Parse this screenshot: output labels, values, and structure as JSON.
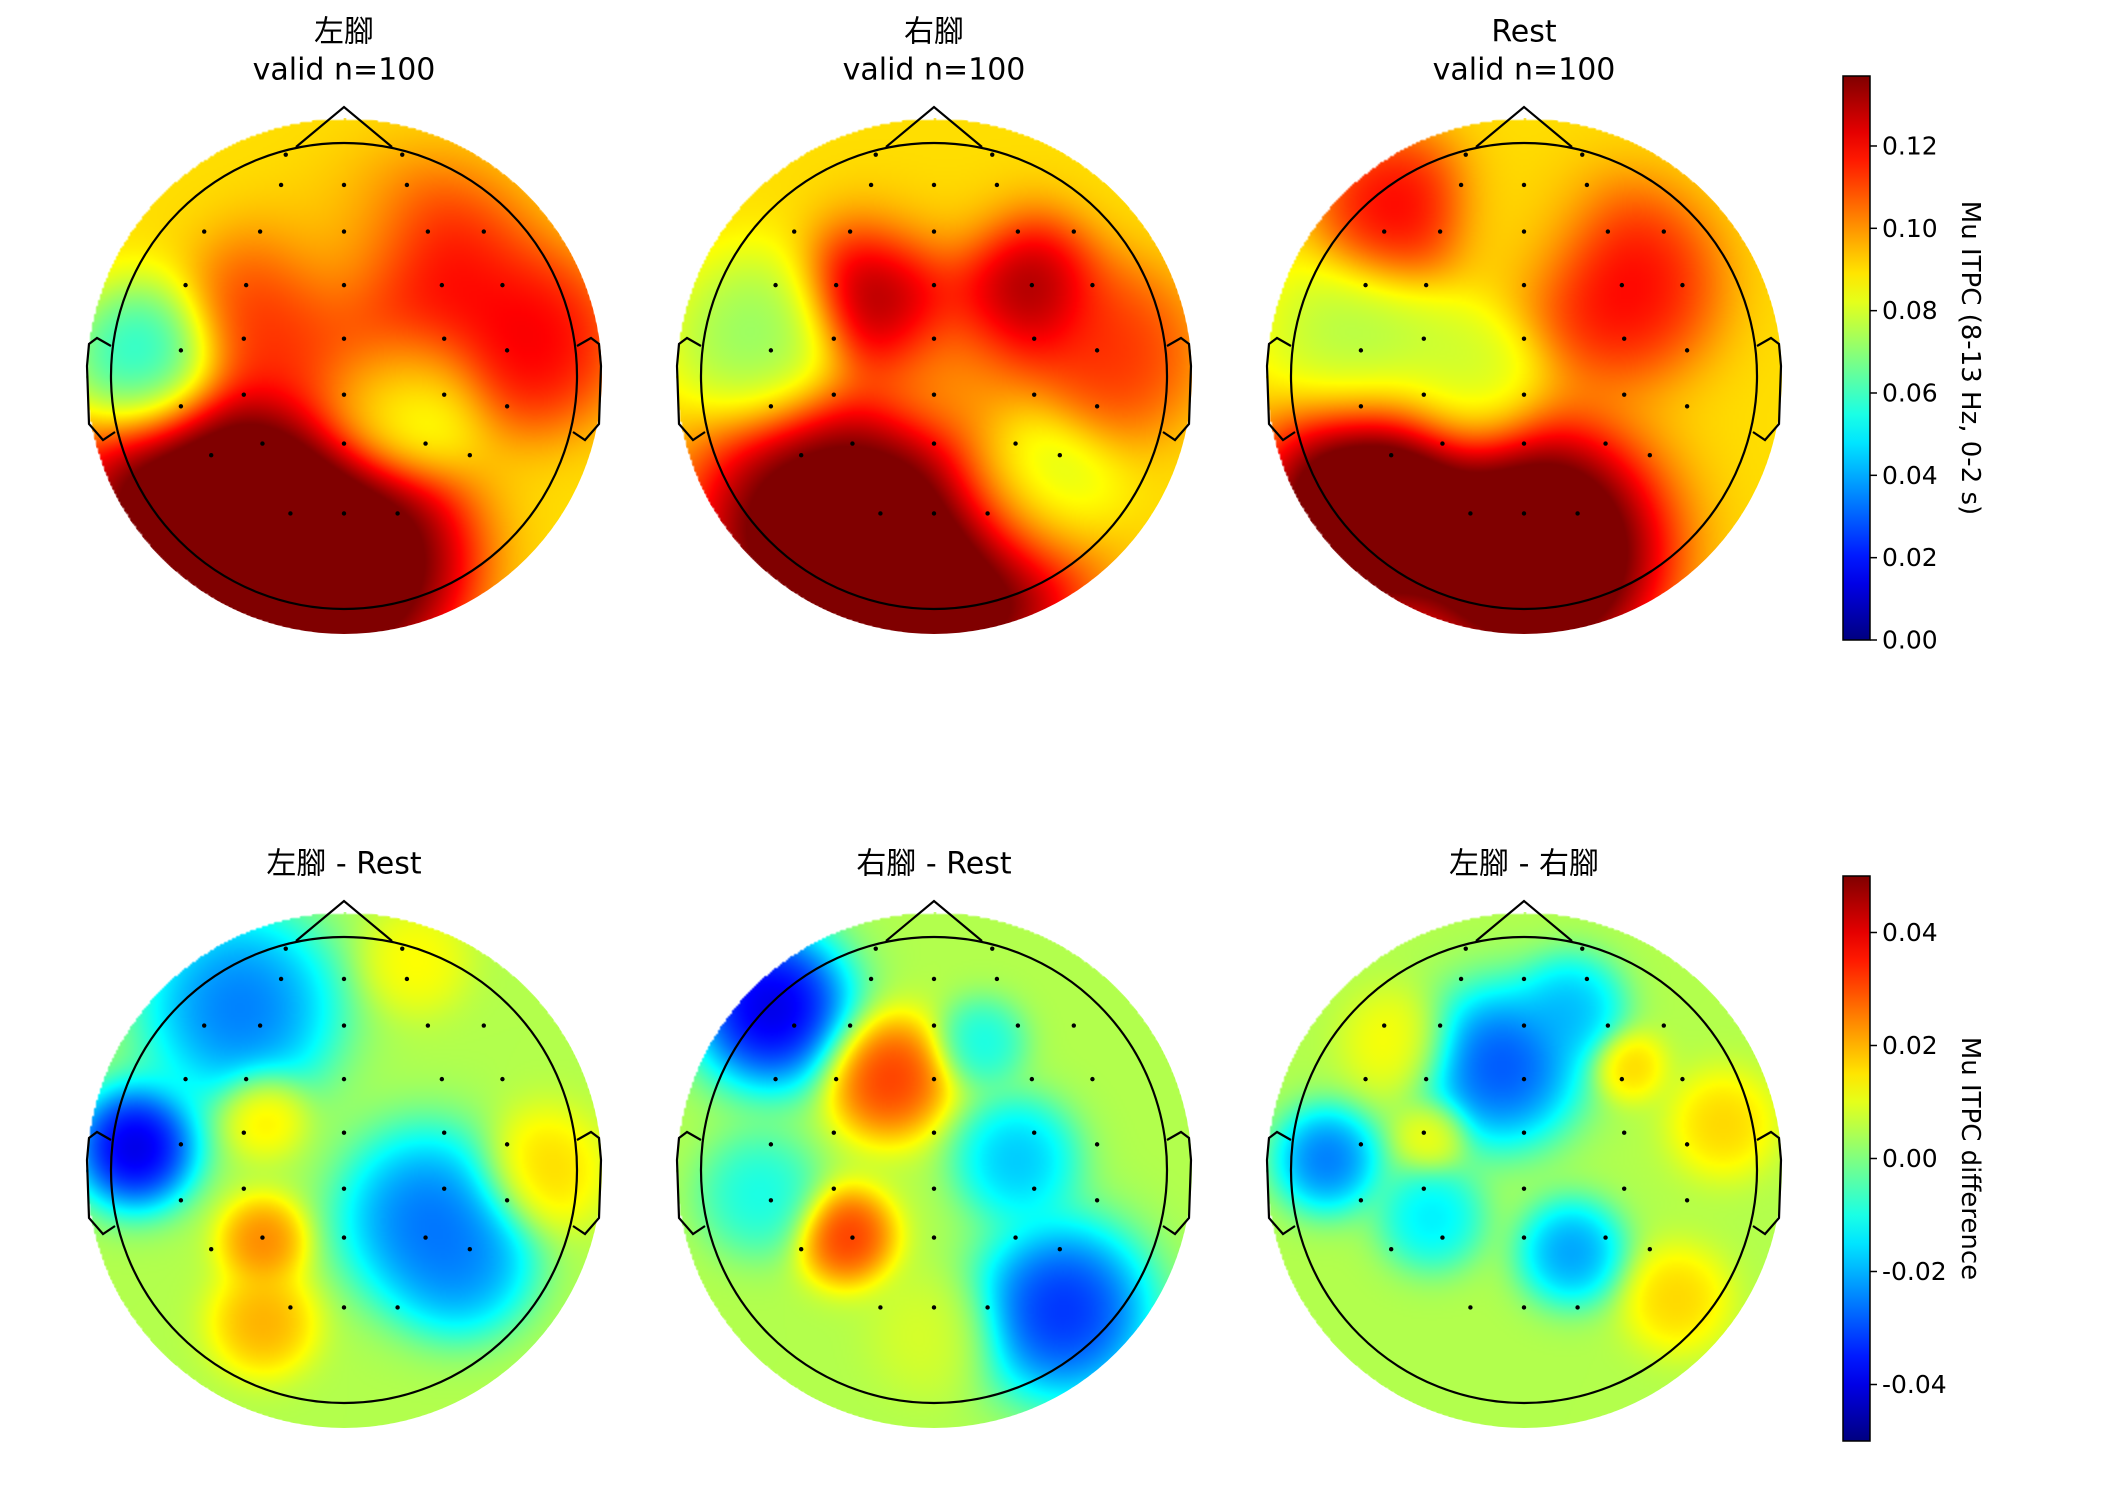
{
  "chart_data": [
    {
      "type": "heatmap",
      "subtype": "topomap",
      "title": "左腳",
      "subtitle": "valid n=100",
      "colormap": "jet",
      "range": [
        0.0,
        0.137
      ],
      "colorbar": "itpc",
      "blobs": [
        {
          "x": -0.6,
          "y": -0.55,
          "v": 0.17,
          "s": 0.3
        },
        {
          "x": -0.25,
          "y": -0.75,
          "v": 0.17,
          "s": 0.3
        },
        {
          "x": 0.05,
          "y": -0.8,
          "v": 0.16,
          "s": 0.25
        },
        {
          "x": 0.35,
          "y": 0.4,
          "v": 0.13,
          "s": 0.25
        },
        {
          "x": 0.8,
          "y": 0.15,
          "v": 0.13,
          "s": 0.2
        },
        {
          "x": -0.3,
          "y": 0.25,
          "v": 0.12,
          "s": 0.2
        },
        {
          "x": 0.2,
          "y": 0.0,
          "v": 0.12,
          "s": 0.2
        },
        {
          "x": -0.85,
          "y": 0.05,
          "v": 0.04,
          "s": 0.18
        },
        {
          "x": 0.25,
          "y": -0.1,
          "v": 0.055,
          "s": 0.18
        },
        {
          "x": 0.0,
          "y": 0.55,
          "v": 0.09,
          "s": 0.2
        }
      ]
    },
    {
      "type": "heatmap",
      "subtype": "topomap",
      "title": "右腳",
      "subtitle": "valid n=100",
      "colormap": "jet",
      "range": [
        0.0,
        0.137
      ],
      "colorbar": "itpc",
      "blobs": [
        {
          "x": -0.45,
          "y": -0.65,
          "v": 0.17,
          "s": 0.3
        },
        {
          "x": 0.1,
          "y": -0.8,
          "v": 0.17,
          "s": 0.28
        },
        {
          "x": -0.2,
          "y": 0.35,
          "v": 0.15,
          "s": 0.18
        },
        {
          "x": 0.35,
          "y": 0.35,
          "v": 0.15,
          "s": 0.18
        },
        {
          "x": 0.75,
          "y": 0.1,
          "v": 0.12,
          "s": 0.2
        },
        {
          "x": -0.75,
          "y": 0.15,
          "v": 0.065,
          "s": 0.2
        },
        {
          "x": 0.4,
          "y": -0.5,
          "v": 0.065,
          "s": 0.2
        },
        {
          "x": 0.1,
          "y": 0.1,
          "v": 0.1,
          "s": 0.2
        },
        {
          "x": 0.0,
          "y": 0.7,
          "v": 0.09,
          "s": 0.2
        }
      ]
    },
    {
      "type": "heatmap",
      "subtype": "topomap",
      "title": "Rest",
      "subtitle": "valid n=100",
      "colormap": "jet",
      "range": [
        0.0,
        0.137
      ],
      "colorbar": "itpc",
      "blobs": [
        {
          "x": -0.65,
          "y": -0.55,
          "v": 0.18,
          "s": 0.25
        },
        {
          "x": 0.05,
          "y": -0.75,
          "v": 0.18,
          "s": 0.28
        },
        {
          "x": 0.4,
          "y": 0.4,
          "v": 0.13,
          "s": 0.22
        },
        {
          "x": -0.55,
          "y": 0.7,
          "v": 0.13,
          "s": 0.18
        },
        {
          "x": -0.7,
          "y": 0.15,
          "v": 0.07,
          "s": 0.22
        },
        {
          "x": -0.25,
          "y": 0.0,
          "v": 0.075,
          "s": 0.18
        },
        {
          "x": 0.0,
          "y": 0.65,
          "v": 0.09,
          "s": 0.2
        }
      ]
    },
    {
      "type": "heatmap",
      "subtype": "topomap",
      "title": "左腳 - Rest",
      "subtitle": "",
      "colormap": "jet",
      "range": [
        -0.05,
        0.05
      ],
      "colorbar": "diff",
      "blobs": [
        {
          "x": -0.9,
          "y": 0.1,
          "v": -0.055,
          "s": 0.14
        },
        {
          "x": -0.45,
          "y": 0.7,
          "v": -0.035,
          "s": 0.22
        },
        {
          "x": 0.35,
          "y": -0.2,
          "v": -0.035,
          "s": 0.2
        },
        {
          "x": 0.5,
          "y": -0.4,
          "v": -0.03,
          "s": 0.16
        },
        {
          "x": -0.35,
          "y": -0.3,
          "v": 0.03,
          "s": 0.1
        },
        {
          "x": -0.35,
          "y": -0.65,
          "v": 0.025,
          "s": 0.12
        },
        {
          "x": -0.35,
          "y": 0.25,
          "v": 0.02,
          "s": 0.1
        },
        {
          "x": 0.85,
          "y": 0.0,
          "v": 0.02,
          "s": 0.14
        },
        {
          "x": 0.3,
          "y": 0.9,
          "v": 0.015,
          "s": 0.12
        }
      ]
    },
    {
      "type": "heatmap",
      "subtype": "topomap",
      "title": "右腳 - Rest",
      "subtitle": "",
      "colormap": "jet",
      "range": [
        -0.05,
        0.05
      ],
      "colorbar": "diff",
      "blobs": [
        {
          "x": -0.7,
          "y": 0.7,
          "v": -0.055,
          "s": 0.18
        },
        {
          "x": 0.55,
          "y": -0.6,
          "v": -0.045,
          "s": 0.2
        },
        {
          "x": 0.35,
          "y": 0.05,
          "v": -0.025,
          "s": 0.14
        },
        {
          "x": -0.2,
          "y": 0.4,
          "v": 0.04,
          "s": 0.14
        },
        {
          "x": -0.38,
          "y": -0.28,
          "v": 0.04,
          "s": 0.11
        },
        {
          "x": -0.75,
          "y": -0.1,
          "v": -0.015,
          "s": 0.14
        },
        {
          "x": 0.2,
          "y": 0.55,
          "v": -0.015,
          "s": 0.1
        },
        {
          "x": 0.0,
          "y": -0.7,
          "v": 0.01,
          "s": 0.14
        }
      ]
    },
    {
      "type": "heatmap",
      "subtype": "topomap",
      "title": "左腳 - 右腳",
      "subtitle": "",
      "colormap": "jet",
      "range": [
        -0.05,
        0.05
      ],
      "colorbar": "diff",
      "blobs": [
        {
          "x": -0.1,
          "y": 0.45,
          "v": -0.04,
          "s": 0.18
        },
        {
          "x": -0.85,
          "y": 0.05,
          "v": -0.035,
          "s": 0.12
        },
        {
          "x": 0.2,
          "y": -0.35,
          "v": -0.03,
          "s": 0.12
        },
        {
          "x": -0.4,
          "y": -0.2,
          "v": -0.02,
          "s": 0.12
        },
        {
          "x": 0.2,
          "y": 0.7,
          "v": -0.025,
          "s": 0.12
        },
        {
          "x": 0.85,
          "y": 0.2,
          "v": 0.02,
          "s": 0.12
        },
        {
          "x": 0.45,
          "y": 0.45,
          "v": 0.02,
          "s": 0.08
        },
        {
          "x": -0.4,
          "y": 0.15,
          "v": 0.015,
          "s": 0.08
        },
        {
          "x": 0.65,
          "y": -0.55,
          "v": 0.02,
          "s": 0.12
        },
        {
          "x": -0.55,
          "y": 0.55,
          "v": 0.015,
          "s": 0.12
        }
      ]
    }
  ],
  "sensors": [
    [
      -0.25,
      0.95
    ],
    [
      0.25,
      0.95
    ],
    [
      -0.27,
      0.82
    ],
    [
      0.0,
      0.82
    ],
    [
      0.27,
      0.82
    ],
    [
      -0.6,
      0.62
    ],
    [
      -0.36,
      0.62
    ],
    [
      0.0,
      0.62
    ],
    [
      0.36,
      0.62
    ],
    [
      0.6,
      0.62
    ],
    [
      -0.68,
      0.39
    ],
    [
      -0.42,
      0.39
    ],
    [
      0.0,
      0.39
    ],
    [
      0.42,
      0.39
    ],
    [
      0.68,
      0.39
    ],
    [
      -0.7,
      0.11
    ],
    [
      -0.43,
      0.16
    ],
    [
      0.0,
      0.16
    ],
    [
      0.43,
      0.16
    ],
    [
      0.7,
      0.11
    ],
    [
      -0.7,
      -0.13
    ],
    [
      -0.43,
      -0.08
    ],
    [
      0.0,
      -0.08
    ],
    [
      0.43,
      -0.08
    ],
    [
      0.7,
      -0.13
    ],
    [
      -0.57,
      -0.34
    ],
    [
      -0.35,
      -0.29
    ],
    [
      0.0,
      -0.29
    ],
    [
      0.35,
      -0.29
    ],
    [
      0.54,
      -0.34
    ],
    [
      -0.23,
      -0.59
    ],
    [
      0.0,
      -0.59
    ],
    [
      0.23,
      -0.59
    ]
  ],
  "colorbars": [
    {
      "id": "itpc",
      "label": "Mu ITPC (8-13 Hz, 0-2 s)",
      "range": [
        0.0,
        0.137
      ],
      "ticks": [
        0.0,
        0.02,
        0.04,
        0.06,
        0.08,
        0.1,
        0.12
      ],
      "tick_labels": [
        "0.00",
        "0.02",
        "0.04",
        "0.06",
        "0.08",
        "0.10",
        "0.12"
      ]
    },
    {
      "id": "diff",
      "label": "Mu ITPC difference",
      "range": [
        -0.05,
        0.05
      ],
      "ticks": [
        -0.04,
        -0.02,
        0.0,
        0.02,
        0.04
      ],
      "tick_labels": [
        "-0.04",
        "-0.02",
        "0.00",
        "0.02",
        "0.04"
      ]
    }
  ]
}
